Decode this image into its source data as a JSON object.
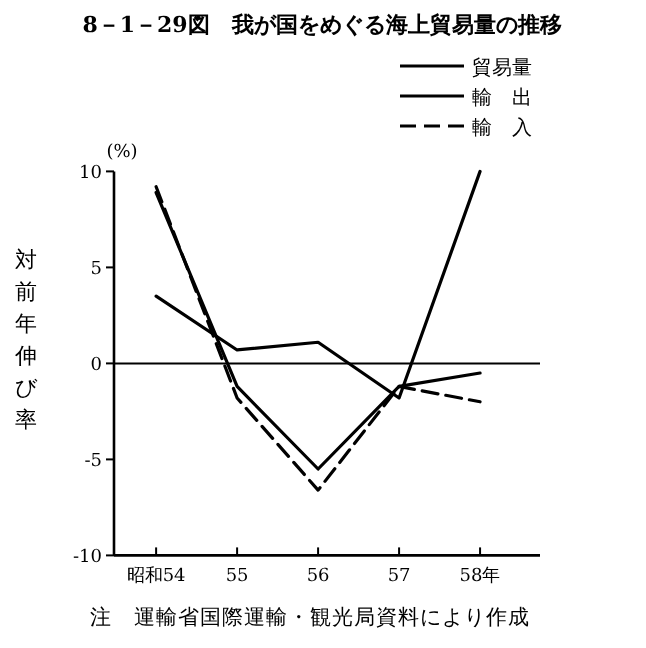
{
  "chart_data": {
    "type": "line",
    "title": "8－1－29図　我が国をめぐる海上貿易量の推移",
    "ylabel": "対前年伸び率",
    "categories": [
      "昭和54",
      "55",
      "56",
      "57",
      "58年"
    ],
    "series": [
      {
        "name": "貿易量",
        "color": "#000000",
        "line_style": "solid",
        "values": [
          3.5,
          0.7,
          1.1,
          -1.8,
          10
        ]
      },
      {
        "name": "輸　出",
        "color": "#000000",
        "line_style": "solid",
        "values": [
          8.9,
          -1.2,
          -5.5,
          -1.2,
          -0.5
        ]
      },
      {
        "name": "輸　入",
        "color": "#000000",
        "line_style": "dashed",
        "values": [
          9.2,
          -1.8,
          -6.6,
          -1.2,
          -2.0
        ]
      }
    ],
    "ylim": [
      -10,
      10
    ],
    "yticks": [
      -10,
      -5,
      0,
      5,
      10
    ],
    "ref_lines": [
      {
        "axis": "y",
        "value": 0
      }
    ],
    "legend": "top right",
    "annotations": [
      "(%)",
      "注　運輸省国際運輸・観光局資料により作成"
    ]
  }
}
